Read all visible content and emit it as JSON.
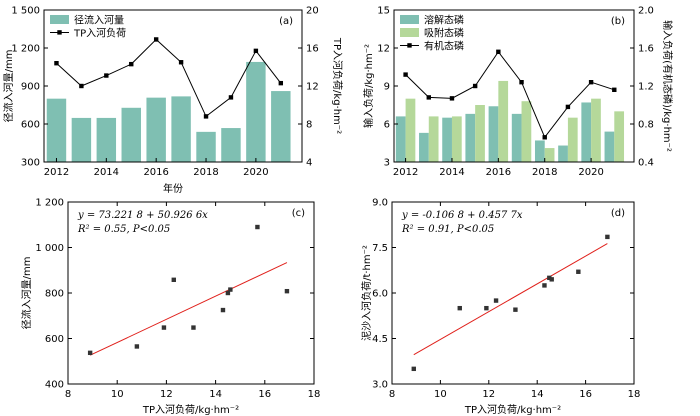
{
  "chart_data": [
    {
      "type": "bar+line",
      "panel_label": "(a)",
      "categories": [
        2012,
        2013,
        2014,
        2015,
        2016,
        2017,
        2018,
        2019,
        2020,
        2021
      ],
      "x_ticks": [
        "2012",
        "2014",
        "2016",
        "2018",
        "2020"
      ],
      "xlabel": "年份",
      "ylabel": "径流入河量/mm",
      "y2label": "TP入河负荷/kg·hm⁻²",
      "ylim": [
        300,
        1500
      ],
      "y_ticks": [
        "300",
        "600",
        "900",
        "1 200",
        "1 500"
      ],
      "y2lim": [
        4,
        20
      ],
      "y2_ticks": [
        "4",
        "8",
        "12",
        "16",
        "20"
      ],
      "series": [
        {
          "name": "径流入河量",
          "kind": "bar",
          "color": "#7fbfb2",
          "values": [
            800,
            648,
            648,
            728,
            808,
            818,
            538,
            568,
            1090,
            860
          ]
        },
        {
          "name": "TP入河负荷",
          "kind": "line",
          "axis": "right",
          "color": "#000000",
          "values": [
            14.4,
            12.0,
            13.1,
            14.3,
            16.9,
            14.5,
            8.8,
            10.8,
            15.7,
            12.3
          ]
        }
      ]
    },
    {
      "type": "bar+line",
      "panel_label": "(b)",
      "categories": [
        2012,
        2013,
        2014,
        2015,
        2016,
        2017,
        2018,
        2019,
        2020,
        2021
      ],
      "x_ticks": [
        "2012",
        "2014",
        "2016",
        "2018",
        "2020"
      ],
      "xlabel": "",
      "ylabel": "输入负荷/kg·hm⁻²",
      "y2label": "输入负荷(有机态磷)/kg·hm⁻²",
      "ylim": [
        3,
        15
      ],
      "y_ticks": [
        "3",
        "6",
        "9",
        "12",
        "15"
      ],
      "y2lim": [
        0.4,
        2.0
      ],
      "y2_ticks": [
        "0.4",
        "0.8",
        "1.2",
        "1.6",
        "2.0"
      ],
      "series": [
        {
          "name": "溶解态磷",
          "kind": "bar",
          "color": "#7fbfb2",
          "values": [
            6.6,
            5.3,
            6.5,
            6.8,
            7.4,
            6.8,
            4.7,
            4.3,
            7.7,
            5.4
          ]
        },
        {
          "name": "吸附态磷",
          "kind": "bar",
          "color": "#b5d89a",
          "values": [
            8.0,
            6.6,
            6.6,
            7.5,
            9.4,
            7.8,
            4.1,
            6.5,
            8.0,
            7.0
          ]
        },
        {
          "name": "有机态磷",
          "kind": "line",
          "axis": "right",
          "color": "#000000",
          "values": [
            1.32,
            1.08,
            1.07,
            1.2,
            1.56,
            1.24,
            0.66,
            0.98,
            1.24,
            1.16
          ]
        }
      ]
    },
    {
      "type": "scatter",
      "panel_label": "(c)",
      "xlabel": "TP入河负荷/kg·hm⁻²",
      "ylabel": "径流入河量/mm",
      "xlim": [
        8,
        18
      ],
      "x_ticks": [
        "8",
        "10",
        "12",
        "14",
        "16",
        "18"
      ],
      "ylim": [
        400,
        1200
      ],
      "y_ticks": [
        "400",
        "600",
        "800",
        "1 000",
        "1 200"
      ],
      "equation": "y = 73.221 8 + 50.926 6x",
      "r2_text": "R² = 0.55, P<0.05",
      "fit": {
        "intercept": 73.2218,
        "slope": 50.9266,
        "x_range": [
          8.9,
          16.9
        ],
        "color": "#e0201b"
      },
      "points": [
        [
          8.9,
          537
        ],
        [
          10.8,
          565
        ],
        [
          11.9,
          648
        ],
        [
          12.3,
          858
        ],
        [
          13.1,
          648
        ],
        [
          14.3,
          725
        ],
        [
          14.5,
          800
        ],
        [
          14.6,
          815
        ],
        [
          15.7,
          1090
        ],
        [
          16.9,
          808
        ]
      ]
    },
    {
      "type": "scatter",
      "panel_label": "(d)",
      "xlabel": "TP入河负荷/kg·hm⁻²",
      "ylabel": "泥沙入河负荷/t·hm⁻²",
      "xlim": [
        8,
        18
      ],
      "x_ticks": [
        "8",
        "10",
        "12",
        "14",
        "16",
        "18"
      ],
      "ylim": [
        3.0,
        9.0
      ],
      "y_ticks": [
        "3.0",
        "4.5",
        "6.0",
        "7.5",
        "9.0"
      ],
      "equation": "y = -0.106 8 + 0.457 7x",
      "r2_text": "R² = 0.91, P<0.05",
      "fit": {
        "intercept": -0.1068,
        "slope": 0.4577,
        "x_range": [
          8.9,
          16.9
        ],
        "color": "#e0201b"
      },
      "points": [
        [
          8.9,
          3.5
        ],
        [
          10.8,
          5.5
        ],
        [
          11.9,
          5.5
        ],
        [
          12.3,
          5.75
        ],
        [
          13.1,
          5.45
        ],
        [
          14.3,
          6.25
        ],
        [
          14.5,
          6.5
        ],
        [
          14.6,
          6.45
        ],
        [
          15.7,
          6.7
        ],
        [
          16.9,
          7.85
        ]
      ]
    }
  ]
}
